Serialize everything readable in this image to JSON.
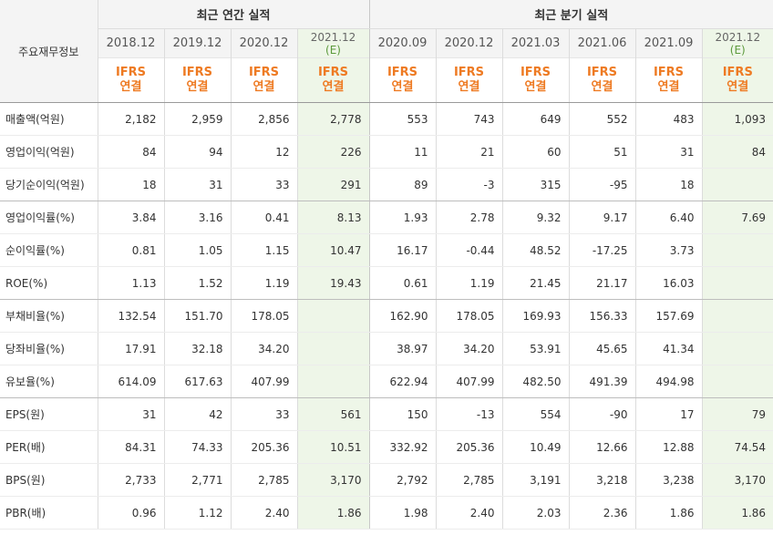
{
  "header": {
    "row_label": "주요재무정보",
    "annual_group": "최근 연간 실적",
    "quarterly_group": "최근 분기 실적",
    "ifrs_line1": "IFRS",
    "ifrs_line2": "연결",
    "estimate_mark": "(E)"
  },
  "periods": [
    {
      "label": "2018.12",
      "est": false,
      "group": "annual"
    },
    {
      "label": "2019.12",
      "est": false,
      "group": "annual"
    },
    {
      "label": "2020.12",
      "est": false,
      "group": "annual"
    },
    {
      "label": "2021.12",
      "est": true,
      "group": "annual"
    },
    {
      "label": "2020.09",
      "est": false,
      "group": "quarterly"
    },
    {
      "label": "2020.12",
      "est": false,
      "group": "quarterly"
    },
    {
      "label": "2021.03",
      "est": false,
      "group": "quarterly"
    },
    {
      "label": "2021.06",
      "est": false,
      "group": "quarterly"
    },
    {
      "label": "2021.09",
      "est": false,
      "group": "quarterly"
    },
    {
      "label": "2021.12",
      "est": true,
      "group": "quarterly"
    }
  ],
  "rows": [
    {
      "label": "매출액(억원)",
      "values": [
        "2,182",
        "2,959",
        "2,856",
        "2,778",
        "553",
        "743",
        "649",
        "552",
        "483",
        "1,093"
      ],
      "group_end": false
    },
    {
      "label": "영업이익(억원)",
      "values": [
        "84",
        "94",
        "12",
        "226",
        "11",
        "21",
        "60",
        "51",
        "31",
        "84"
      ],
      "group_end": false
    },
    {
      "label": "당기순이익(억원)",
      "values": [
        "18",
        "31",
        "33",
        "291",
        "89",
        "-3",
        "315",
        "-95",
        "18",
        ""
      ],
      "group_end": true
    },
    {
      "label": "영업이익률(%)",
      "values": [
        "3.84",
        "3.16",
        "0.41",
        "8.13",
        "1.93",
        "2.78",
        "9.32",
        "9.17",
        "6.40",
        "7.69"
      ],
      "group_end": false
    },
    {
      "label": "순이익률(%)",
      "values": [
        "0.81",
        "1.05",
        "1.15",
        "10.47",
        "16.17",
        "-0.44",
        "48.52",
        "-17.25",
        "3.73",
        ""
      ],
      "group_end": false
    },
    {
      "label": "ROE(%)",
      "values": [
        "1.13",
        "1.52",
        "1.19",
        "19.43",
        "0.61",
        "1.19",
        "21.45",
        "21.17",
        "16.03",
        ""
      ],
      "group_end": true
    },
    {
      "label": "부채비율(%)",
      "values": [
        "132.54",
        "151.70",
        "178.05",
        "",
        "162.90",
        "178.05",
        "169.93",
        "156.33",
        "157.69",
        ""
      ],
      "group_end": false
    },
    {
      "label": "당좌비율(%)",
      "values": [
        "17.91",
        "32.18",
        "34.20",
        "",
        "38.97",
        "34.20",
        "53.91",
        "45.65",
        "41.34",
        ""
      ],
      "group_end": false
    },
    {
      "label": "유보율(%)",
      "values": [
        "614.09",
        "617.63",
        "407.99",
        "",
        "622.94",
        "407.99",
        "482.50",
        "491.39",
        "494.98",
        ""
      ],
      "group_end": true
    },
    {
      "label": "EPS(원)",
      "values": [
        "31",
        "42",
        "33",
        "561",
        "150",
        "-13",
        "554",
        "-90",
        "17",
        "79"
      ],
      "group_end": false
    },
    {
      "label": "PER(배)",
      "values": [
        "84.31",
        "74.33",
        "205.36",
        "10.51",
        "332.92",
        "205.36",
        "10.49",
        "12.66",
        "12.88",
        "74.54"
      ],
      "group_end": false
    },
    {
      "label": "BPS(원)",
      "values": [
        "2,733",
        "2,771",
        "2,785",
        "3,170",
        "2,792",
        "2,785",
        "3,191",
        "3,218",
        "3,238",
        "3,170"
      ],
      "group_end": false
    },
    {
      "label": "PBR(배)",
      "values": [
        "0.96",
        "1.12",
        "2.40",
        "1.86",
        "1.98",
        "2.40",
        "2.03",
        "2.36",
        "1.86",
        "1.86"
      ],
      "group_end": false
    }
  ]
}
